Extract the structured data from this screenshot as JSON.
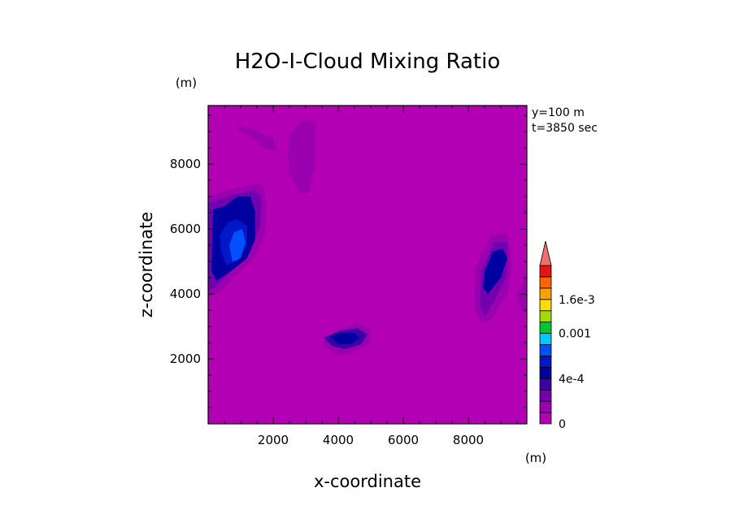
{
  "chart_data": {
    "type": "heatmap",
    "title": "H2O-I-Cloud Mixing Ratio",
    "xlabel": "x-coordinate",
    "ylabel": "z-coordinate",
    "x_unit": "(m)",
    "y_unit": "(m)",
    "annotations": [
      "y=100 m",
      "t=3850 sec"
    ],
    "xlim": [
      0,
      9800
    ],
    "ylim": [
      0,
      9800
    ],
    "x_ticks": [
      2000,
      4000,
      6000,
      8000
    ],
    "y_ticks": [
      2000,
      4000,
      6000,
      8000
    ],
    "x_tick_labels": [
      "2000",
      "4000",
      "6000",
      "8000"
    ],
    "y_tick_labels": [
      "2000",
      "4000",
      "6000",
      "8000"
    ],
    "background_value": 0,
    "colorbar": {
      "levels": [
        0,
        0.0001,
        0.0002,
        0.0003,
        0.0004,
        0.0005,
        0.0006,
        0.0008,
        0.001,
        0.0012,
        0.0014,
        0.0016,
        0.0018,
        0.002
      ],
      "colors": [
        "#b400b4",
        "#9a00b0",
        "#7200b0",
        "#3c00a8",
        "#0000a0",
        "#0018c8",
        "#0050ff",
        "#00c8ff",
        "#00c832",
        "#a0dc00",
        "#ffdc00",
        "#ffa000",
        "#ff6400",
        "#e61414"
      ],
      "extend_color": "#f07070",
      "tick_values": [
        0,
        0.0004,
        0.001,
        0.0016
      ],
      "tick_labels": [
        "0",
        "4e-4",
        "0.001",
        "1.6e-3"
      ]
    },
    "regions": [
      {
        "level": 0.0001,
        "points": [
          [
            920,
            9200
          ],
          [
            1400,
            9050
          ],
          [
            2000,
            8800
          ],
          [
            2100,
            8400
          ],
          [
            1700,
            8500
          ],
          [
            1300,
            8850
          ],
          [
            900,
            9050
          ]
        ]
      },
      {
        "level": 0.0001,
        "points": [
          [
            2450,
            8200
          ],
          [
            2500,
            8900
          ],
          [
            2900,
            9350
          ],
          [
            3300,
            9300
          ],
          [
            3300,
            8000
          ],
          [
            3100,
            7100
          ],
          [
            2800,
            7100
          ],
          [
            2500,
            7700
          ]
        ]
      },
      {
        "level": 0.0001,
        "points": [
          [
            0,
            7000
          ],
          [
            600,
            7200
          ],
          [
            1500,
            7400
          ],
          [
            1700,
            7300
          ],
          [
            1800,
            6700
          ],
          [
            1750,
            5800
          ],
          [
            1400,
            5100
          ],
          [
            800,
            4500
          ],
          [
            400,
            4100
          ],
          [
            0,
            3900
          ]
        ]
      },
      {
        "level": 0.0001,
        "points": [
          [
            3500,
            2500
          ],
          [
            4000,
            2900
          ],
          [
            4600,
            3100
          ],
          [
            5000,
            2900
          ],
          [
            5000,
            2500
          ],
          [
            4500,
            2200
          ],
          [
            3900,
            2100
          ]
        ]
      },
      {
        "level": 0.0001,
        "points": [
          [
            8200,
            3500
          ],
          [
            8200,
            4800
          ],
          [
            8700,
            5800
          ],
          [
            9200,
            5900
          ],
          [
            9350,
            5000
          ],
          [
            9200,
            4000
          ],
          [
            8700,
            3200
          ],
          [
            8400,
            3100
          ]
        ]
      },
      {
        "level": 0.0001,
        "points": [
          [
            9500,
            4000
          ],
          [
            9700,
            4400
          ],
          [
            9800,
            4700
          ],
          [
            9800,
            3400
          ],
          [
            9600,
            3500
          ]
        ]
      },
      {
        "level": 0.0001,
        "points": [
          [
            9700,
            6600
          ],
          [
            9800,
            6800
          ],
          [
            9800,
            6400
          ]
        ]
      },
      {
        "level": 0.0002,
        "points": [
          [
            0,
            6800
          ],
          [
            600,
            7000
          ],
          [
            1400,
            7200
          ],
          [
            1650,
            7000
          ],
          [
            1600,
            6100
          ],
          [
            1300,
            5300
          ],
          [
            700,
            4700
          ],
          [
            200,
            4200
          ],
          [
            0,
            4100
          ]
        ]
      },
      {
        "level": 0.0002,
        "points": [
          [
            8350,
            3700
          ],
          [
            8400,
            4700
          ],
          [
            8800,
            5600
          ],
          [
            9200,
            5600
          ],
          [
            9200,
            4600
          ],
          [
            8800,
            3800
          ],
          [
            8500,
            3300
          ]
        ]
      },
      {
        "level": 0.0003,
        "points": [
          [
            3550,
            2650
          ],
          [
            4000,
            2850
          ],
          [
            4600,
            2950
          ],
          [
            4900,
            2750
          ],
          [
            4700,
            2450
          ],
          [
            4200,
            2300
          ],
          [
            3800,
            2400
          ]
        ]
      },
      {
        "level": 0.0004,
        "points": [
          [
            150,
            6600
          ],
          [
            500,
            6700
          ],
          [
            900,
            7000
          ],
          [
            1300,
            7000
          ],
          [
            1450,
            6500
          ],
          [
            1450,
            5700
          ],
          [
            1200,
            5100
          ],
          [
            700,
            4700
          ],
          [
            250,
            4400
          ],
          [
            100,
            4700
          ]
        ]
      },
      {
        "level": 0.0004,
        "points": [
          [
            8450,
            4200
          ],
          [
            8500,
            4700
          ],
          [
            8750,
            5300
          ],
          [
            9050,
            5400
          ],
          [
            9200,
            5100
          ],
          [
            9000,
            4500
          ],
          [
            8600,
            4000
          ]
        ]
      },
      {
        "level": 0.0004,
        "points": [
          [
            3750,
            2700
          ],
          [
            4100,
            2800
          ],
          [
            4500,
            2800
          ],
          [
            4650,
            2650
          ],
          [
            4400,
            2450
          ],
          [
            4000,
            2450
          ]
        ]
      },
      {
        "level": 0.0005,
        "points": [
          [
            350,
            5800
          ],
          [
            600,
            6200
          ],
          [
            900,
            6300
          ],
          [
            1200,
            6100
          ],
          [
            1200,
            5500
          ],
          [
            900,
            5000
          ],
          [
            550,
            4900
          ],
          [
            400,
            5300
          ]
        ]
      },
      {
        "level": 0.0006,
        "points": [
          [
            650,
            5500
          ],
          [
            800,
            5900
          ],
          [
            1050,
            6000
          ],
          [
            1150,
            5600
          ],
          [
            1000,
            5100
          ],
          [
            750,
            5000
          ]
        ]
      }
    ]
  }
}
